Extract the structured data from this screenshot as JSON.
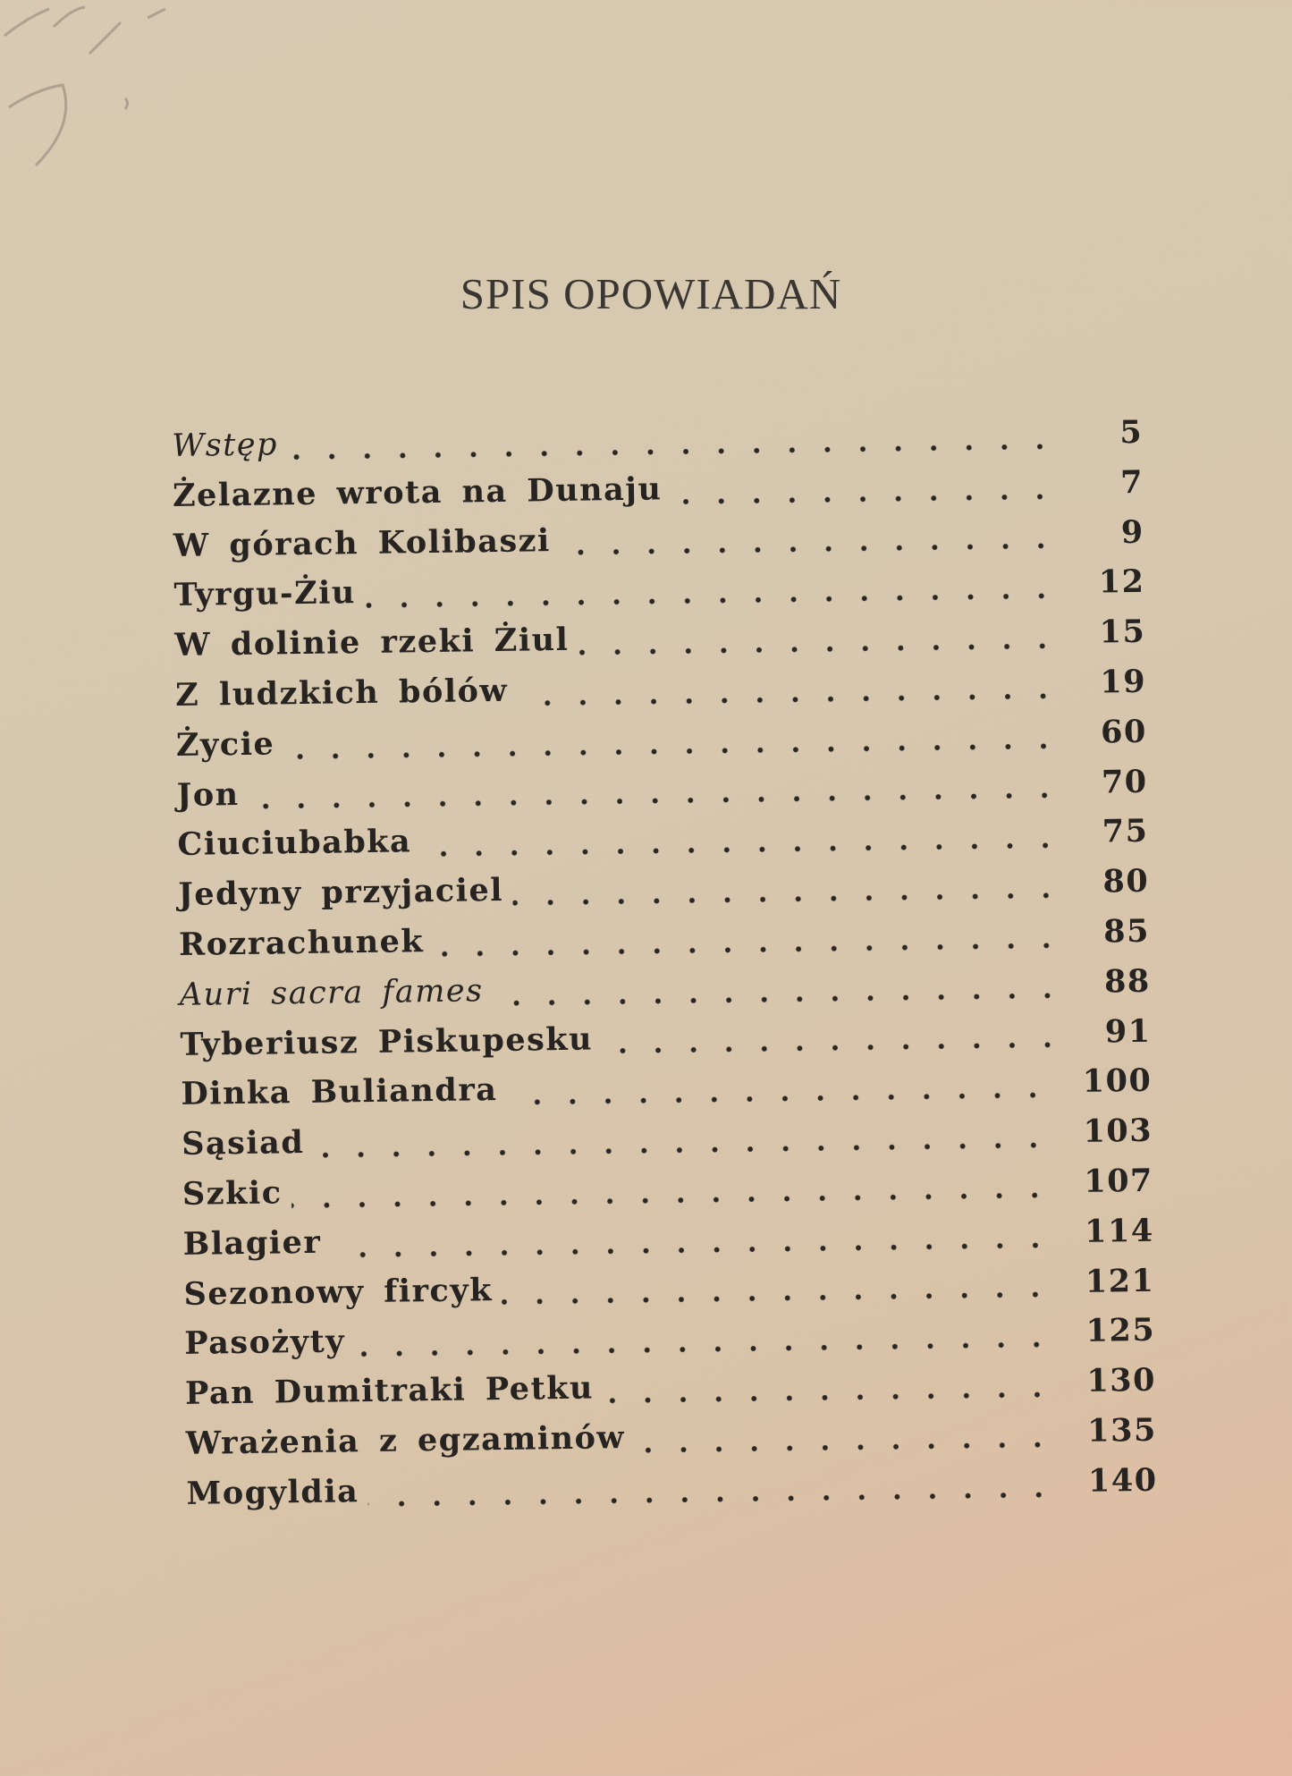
{
  "title": "SPIS OPOWIADAŃ",
  "entries": [
    {
      "title": "Wstęp",
      "page": "5",
      "italic": true
    },
    {
      "title": "Żelazne wrota na Dunaju",
      "page": "7"
    },
    {
      "title": "W górach Kolibaszi",
      "page": "9"
    },
    {
      "title": "Tyrgu-Żiu",
      "page": "12"
    },
    {
      "title": "W dolinie rzeki Żiul",
      "page": "15"
    },
    {
      "title": "Z ludzkich bólów",
      "page": "19"
    },
    {
      "title": "Życie",
      "page": "60"
    },
    {
      "title": "Jon",
      "page": "70"
    },
    {
      "title": "Ciuciubabka",
      "page": "75"
    },
    {
      "title": "Jedyny przyjaciel",
      "page": "80"
    },
    {
      "title": "Rozrachunek",
      "page": "85"
    },
    {
      "title": "Auri sacra fames",
      "page": "88",
      "italic": true
    },
    {
      "title": "Tyberiusz Piskupesku",
      "page": "91"
    },
    {
      "title": "Dinka Buliandra",
      "page": "100"
    },
    {
      "title": "Sąsiad",
      "page": "103"
    },
    {
      "title": "Szkic",
      "page": "107"
    },
    {
      "title": "Blagier",
      "page": "114"
    },
    {
      "title": "Sezonowy fircyk",
      "page": "121"
    },
    {
      "title": "Pasożyty",
      "page": "125"
    },
    {
      "title": "Pan Dumitraki Petku",
      "page": "130"
    },
    {
      "title": "Wrażenia z egzaminów",
      "page": "135"
    },
    {
      "title": "Mogyldia",
      "page": "140"
    }
  ]
}
